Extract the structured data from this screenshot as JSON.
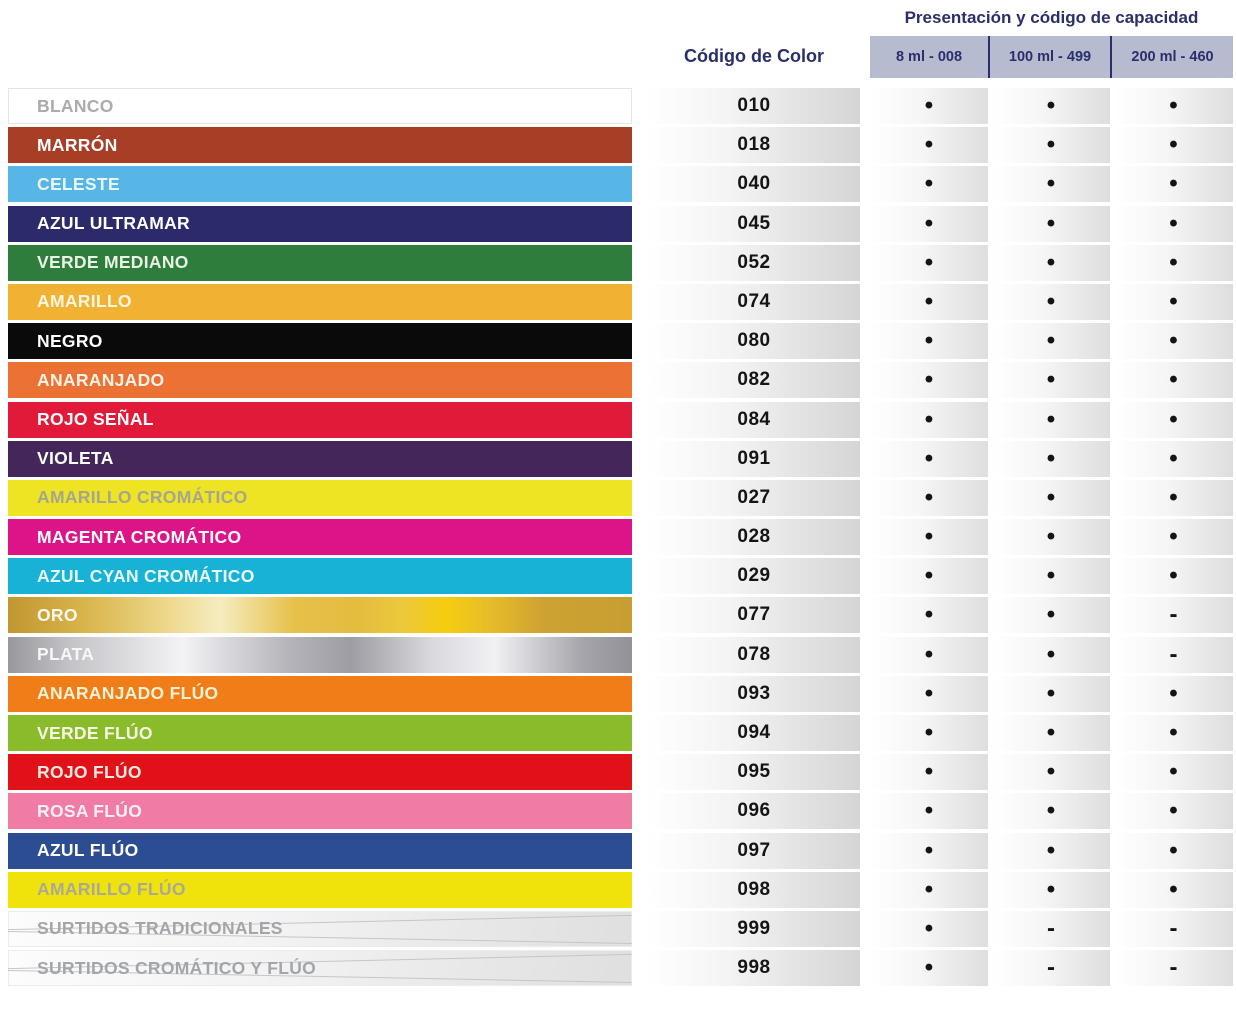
{
  "header": {
    "capacity_title": "Presentación y código de capacidad",
    "color_code_title": "Código de Color",
    "capacity_columns": [
      "8 ml - 008",
      "100 ml - 499",
      "200 ml - 460"
    ],
    "header_text_color": "#2a2f6b",
    "subheader_bg_color": "#b7bbd0"
  },
  "symbols": {
    "available": "•",
    "unavailable": "-"
  },
  "rows": [
    {
      "label": "BLANCO",
      "code": "010",
      "swatch": "#ffffff",
      "label_color": "#ababab",
      "availability": [
        "•",
        "•",
        "•"
      ]
    },
    {
      "label": "MARRÓN",
      "code": "018",
      "swatch": "#a83e26",
      "label_color": "#ffffff",
      "availability": [
        "•",
        "•",
        "•"
      ]
    },
    {
      "label": "CELESTE",
      "code": "040",
      "swatch": "#58b6e6",
      "label_color": "#e9f6fd",
      "availability": [
        "•",
        "•",
        "•"
      ]
    },
    {
      "label": "AZUL ULTRAMAR",
      "code": "045",
      "swatch": "#2b2a6b",
      "label_color": "#ffffff",
      "availability": [
        "•",
        "•",
        "•"
      ]
    },
    {
      "label": "VERDE MEDIANO",
      "code": "052",
      "swatch": "#2e7d3c",
      "label_color": "#e8f4e4",
      "availability": [
        "•",
        "•",
        "•"
      ]
    },
    {
      "label": "AMARILLO",
      "code": "074",
      "swatch": "#f1b233",
      "label_color": "#fdf7e2",
      "availability": [
        "•",
        "•",
        "•"
      ]
    },
    {
      "label": "NEGRO",
      "code": "080",
      "swatch": "#0a0a0a",
      "label_color": "#ffffff",
      "availability": [
        "•",
        "•",
        "•"
      ]
    },
    {
      "label": "ANARANJADO",
      "code": "082",
      "swatch": "#ec7134",
      "label_color": "#fdf3e7",
      "availability": [
        "•",
        "•",
        "•"
      ]
    },
    {
      "label": "ROJO SEÑAL",
      "code": "084",
      "swatch": "#e01a38",
      "label_color": "#ffffff",
      "availability": [
        "•",
        "•",
        "•"
      ]
    },
    {
      "label": "VIOLETA",
      "code": "091",
      "swatch": "#45265a",
      "label_color": "#ffffff",
      "availability": [
        "•",
        "•",
        "•"
      ]
    },
    {
      "label": "AMARILLO CROMÁTICO",
      "code": "027",
      "swatch": "#efe424",
      "label_color": "#a5a593",
      "availability": [
        "•",
        "•",
        "•"
      ]
    },
    {
      "label": "MAGENTA CROMÁTICO",
      "code": "028",
      "swatch": "#dd1488",
      "label_color": "#ffffff",
      "availability": [
        "•",
        "•",
        "•"
      ]
    },
    {
      "label": "AZUL CYAN CROMÁTICO",
      "code": "029",
      "swatch": "#17b2d5",
      "label_color": "#eafbfd",
      "availability": [
        "•",
        "•",
        "•"
      ]
    },
    {
      "label": "ORO",
      "code": "077",
      "swatch": "gold",
      "label_color": "#fdfbef",
      "availability": [
        "•",
        "•",
        "-"
      ]
    },
    {
      "label": "PLATA",
      "code": "078",
      "swatch": "silver",
      "label_color": "#f7f7f9",
      "availability": [
        "•",
        "•",
        "-"
      ]
    },
    {
      "label": "ANARANJADO FLÚO",
      "code": "093",
      "swatch": "#f07d17",
      "label_color": "#f9f2d5",
      "availability": [
        "•",
        "•",
        "•"
      ]
    },
    {
      "label": "VERDE FLÚO",
      "code": "094",
      "swatch": "#8abb2a",
      "label_color": "#f6f8e6",
      "availability": [
        "•",
        "•",
        "•"
      ]
    },
    {
      "label": "ROJO FLÚO",
      "code": "095",
      "swatch": "#e01218",
      "label_color": "#fce9e4",
      "availability": [
        "•",
        "•",
        "•"
      ]
    },
    {
      "label": "ROSA FLÚO",
      "code": "096",
      "swatch": "#f07ca6",
      "label_color": "#fdf0f4",
      "availability": [
        "•",
        "•",
        "•"
      ]
    },
    {
      "label": "AZUL FLÚO",
      "code": "097",
      "swatch": "#2c4d92",
      "label_color": "#ffffff",
      "availability": [
        "•",
        "•",
        "•"
      ]
    },
    {
      "label": "AMARILLO FLÚO",
      "code": "098",
      "swatch": "#f0e30c",
      "label_color": "#a9a998",
      "availability": [
        "•",
        "•",
        "•"
      ]
    },
    {
      "label": "SURTIDOS TRADICIONALES",
      "code": "999",
      "swatch": "assorted",
      "label_color": "#a2a6aa",
      "availability": [
        "•",
        "-",
        "-"
      ]
    },
    {
      "label": "SURTIDOS CROMÁTICO Y FLÚO",
      "code": "998",
      "swatch": "assorted",
      "label_color": "#a2a6aa",
      "availability": [
        "•",
        "-",
        "-"
      ]
    }
  ]
}
